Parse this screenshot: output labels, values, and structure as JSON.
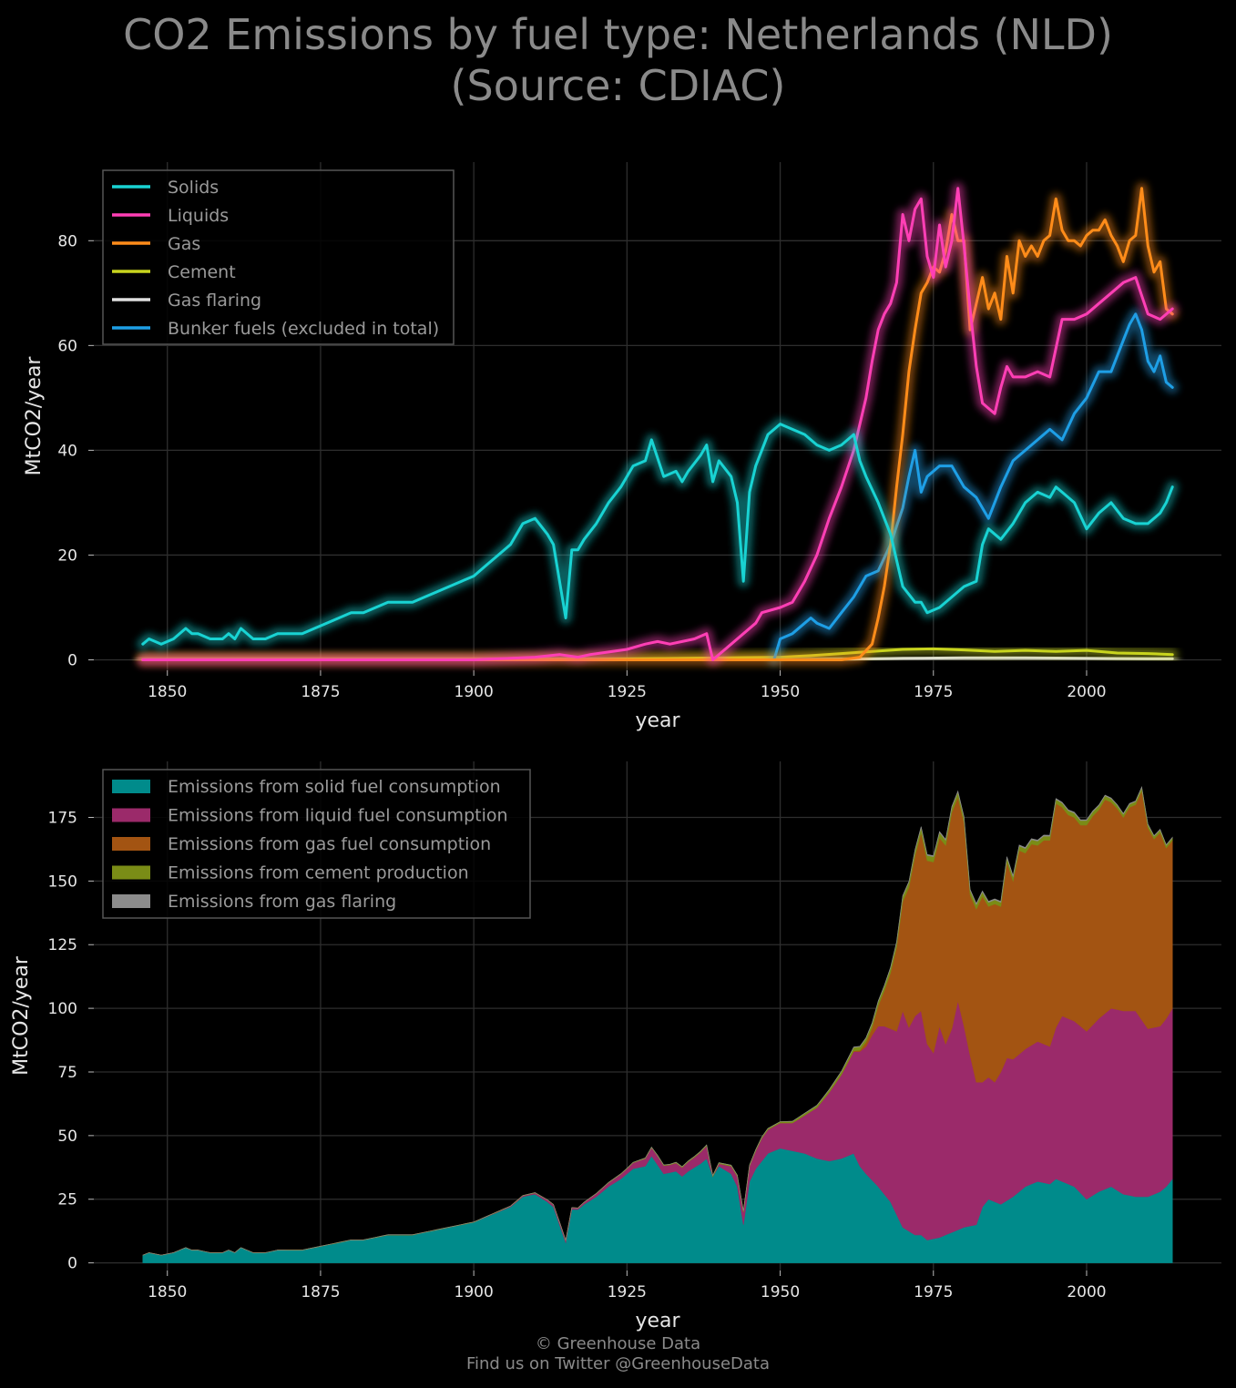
{
  "title_line1": "CO2 Emissions by fuel type: Netherlands (NLD)",
  "title_line2": "(Source: CDIAC)",
  "footer_line1": "© Greenhouse Data",
  "footer_line2": "Find us on Twitter @GreenhouseData",
  "chart_data": [
    {
      "type": "line",
      "xlabel": "year",
      "ylabel": "MtCO2/year",
      "xlim": [
        1838,
        2022
      ],
      "ylim": [
        -2,
        95
      ],
      "xticks": [
        1850,
        1875,
        1900,
        1925,
        1950,
        1975,
        2000
      ],
      "yticks": [
        0,
        20,
        40,
        60,
        80
      ],
      "grid": true,
      "legend_position": "top-left",
      "series": [
        {
          "name": "Solids",
          "color": "#19d3d3",
          "x": [
            1846,
            1847,
            1849,
            1851,
            1853,
            1854,
            1855,
            1857,
            1859,
            1860,
            1861,
            1862,
            1864,
            1866,
            1868,
            1870,
            1872,
            1874,
            1876,
            1878,
            1880,
            1882,
            1884,
            1886,
            1888,
            1890,
            1892,
            1894,
            1896,
            1898,
            1900,
            1902,
            1904,
            1906,
            1908,
            1910,
            1912,
            1913,
            1915,
            1916,
            1917,
            1918,
            1920,
            1922,
            1924,
            1926,
            1928,
            1929,
            1931,
            1933,
            1934,
            1935,
            1937,
            1938,
            1939,
            1940,
            1942,
            1943,
            1944,
            1945,
            1946,
            1947,
            1948,
            1950,
            1952,
            1954,
            1955,
            1956,
            1958,
            1960,
            1962,
            1963,
            1964,
            1966,
            1968,
            1970,
            1972,
            1973,
            1974,
            1976,
            1978,
            1980,
            1982,
            1983,
            1984,
            1986,
            1988,
            1990,
            1992,
            1994,
            1995,
            1996,
            1998,
            2000,
            2002,
            2004,
            2006,
            2008,
            2010,
            2012,
            2013,
            2014
          ],
          "y": [
            3,
            4,
            3,
            4,
            6,
            5,
            5,
            4,
            4,
            5,
            4,
            6,
            4,
            4,
            5,
            5,
            5,
            6,
            7,
            8,
            9,
            9,
            10,
            11,
            11,
            11,
            12,
            13,
            14,
            15,
            16,
            18,
            20,
            22,
            26,
            27,
            24,
            22,
            8,
            21,
            21,
            23,
            26,
            30,
            33,
            37,
            38,
            42,
            35,
            36,
            34,
            36,
            39,
            41,
            34,
            38,
            35,
            30,
            15,
            32,
            37,
            40,
            43,
            45,
            44,
            43,
            42,
            41,
            40,
            41,
            43,
            38,
            35,
            30,
            24,
            14,
            11,
            11,
            9,
            10,
            12,
            14,
            15,
            22,
            25,
            23,
            26,
            30,
            32,
            31,
            33,
            32,
            30,
            25,
            28,
            30,
            27,
            26,
            26,
            28,
            30,
            33
          ]
        },
        {
          "name": "Liquids",
          "color": "#ff3fb5",
          "x": [
            1846,
            1880,
            1900,
            1910,
            1914,
            1917,
            1919,
            1922,
            1925,
            1928,
            1930,
            1932,
            1934,
            1936,
            1938,
            1939,
            1946,
            1947,
            1950,
            1952,
            1954,
            1956,
            1958,
            1960,
            1962,
            1964,
            1965,
            1966,
            1967,
            1968,
            1969,
            1970,
            1971,
            1972,
            1973,
            1974,
            1975,
            1976,
            1977,
            1978,
            1979,
            1980,
            1981,
            1982,
            1983,
            1984,
            1985,
            1986,
            1987,
            1988,
            1990,
            1992,
            1994,
            1996,
            1998,
            2000,
            2002,
            2004,
            2006,
            2008,
            2010,
            2012,
            2014
          ],
          "y": [
            0,
            0,
            0,
            0.5,
            1,
            0.5,
            1,
            1.5,
            2,
            3,
            3.5,
            3,
            3.5,
            4,
            5,
            0,
            7,
            9,
            10,
            11,
            15,
            20,
            27,
            33,
            40,
            50,
            57,
            63,
            66,
            68,
            72,
            85,
            80,
            86,
            88,
            77,
            73,
            83,
            75,
            80,
            90,
            79,
            67,
            56,
            49,
            48,
            47,
            52,
            56,
            54,
            54,
            55,
            54,
            65,
            65,
            66,
            68,
            70,
            72,
            73,
            66,
            65,
            67
          ]
        },
        {
          "name": "Gas",
          "color": "#ff8c1a",
          "x": [
            1846,
            1950,
            1960,
            1963,
            1965,
            1966,
            1967,
            1968,
            1969,
            1970,
            1971,
            1972,
            1973,
            1974,
            1975,
            1976,
            1977,
            1978,
            1979,
            1980,
            1981,
            1982,
            1983,
            1984,
            1985,
            1986,
            1987,
            1988,
            1989,
            1990,
            1991,
            1992,
            1993,
            1994,
            1995,
            1996,
            1997,
            1998,
            1999,
            2000,
            2001,
            2002,
            2003,
            2004,
            2005,
            2006,
            2007,
            2008,
            2009,
            2010,
            2011,
            2012,
            2013,
            2014
          ],
          "y": [
            0,
            0,
            0,
            0.5,
            3,
            8,
            14,
            22,
            33,
            43,
            55,
            63,
            70,
            72,
            75,
            74,
            78,
            85,
            80,
            80,
            63,
            68,
            73,
            67,
            70,
            65,
            77,
            70,
            80,
            77,
            79,
            77,
            80,
            81,
            88,
            82,
            80,
            80,
            79,
            81,
            82,
            82,
            84,
            81,
            79,
            76,
            80,
            81,
            90,
            79,
            74,
            76,
            67,
            66
          ]
        },
        {
          "name": "Cement",
          "color": "#c8d41e",
          "x": [
            1846,
            1920,
            1950,
            1955,
            1960,
            1965,
            1970,
            1975,
            1980,
            1985,
            1990,
            1995,
            2000,
            2005,
            2010,
            2014
          ],
          "y": [
            0,
            0.1,
            0.5,
            0.8,
            1.2,
            1.6,
            2.0,
            2.1,
            1.9,
            1.6,
            1.8,
            1.6,
            1.8,
            1.3,
            1.2,
            1.0
          ]
        },
        {
          "name": "Gas flaring",
          "color": "#e0e0e0",
          "x": [
            1846,
            1950,
            1960,
            1970,
            1980,
            1990,
            2000,
            2010,
            2014
          ],
          "y": [
            0,
            0,
            0.1,
            0.3,
            0.4,
            0.4,
            0.3,
            0.2,
            0.2
          ]
        },
        {
          "name": "Bunker fuels (excluded in total)",
          "color": "#1e9fe6",
          "x": [
            1949,
            1950,
            1952,
            1954,
            1955,
            1956,
            1958,
            1960,
            1962,
            1964,
            1966,
            1968,
            1970,
            1971,
            1972,
            1973,
            1974,
            1976,
            1978,
            1980,
            1982,
            1984,
            1986,
            1988,
            1990,
            1992,
            1994,
            1996,
            1998,
            2000,
            2002,
            2004,
            2006,
            2007,
            2008,
            2009,
            2010,
            2011,
            2012,
            2013,
            2014
          ],
          "y": [
            0,
            4,
            5,
            7,
            8,
            7,
            6,
            9,
            12,
            16,
            17,
            22,
            29,
            35,
            40,
            32,
            35,
            37,
            37,
            33,
            31,
            27,
            33,
            38,
            40,
            42,
            44,
            42,
            47,
            50,
            55,
            55,
            61,
            64,
            66,
            63,
            57,
            55,
            58,
            53,
            52
          ]
        }
      ]
    },
    {
      "type": "area",
      "stacked": true,
      "xlabel": "year",
      "ylabel": "MtCO2/year",
      "xlim": [
        1838,
        2022
      ],
      "ylim": [
        -3,
        197
      ],
      "xticks": [
        1850,
        1875,
        1900,
        1925,
        1950,
        1975,
        2000
      ],
      "yticks": [
        0,
        25,
        50,
        75,
        100,
        125,
        150,
        175
      ],
      "grid": true,
      "legend_position": "top-left",
      "series": [
        {
          "name": "Emissions from solid fuel consumption",
          "color": "#008b8b",
          "key": "Solids"
        },
        {
          "name": "Emissions from liquid fuel consumption",
          "color": "#9b2a6a",
          "key": "Liquids"
        },
        {
          "name": "Emissions from gas fuel consumption",
          "color": "#a35412",
          "key": "Gas"
        },
        {
          "name": "Emissions from cement production",
          "color": "#7a8c16",
          "key": "Cement"
        },
        {
          "name": "Emissions from gas flaring",
          "color": "#8c8c8c",
          "key": "Gas flaring"
        }
      ]
    }
  ]
}
